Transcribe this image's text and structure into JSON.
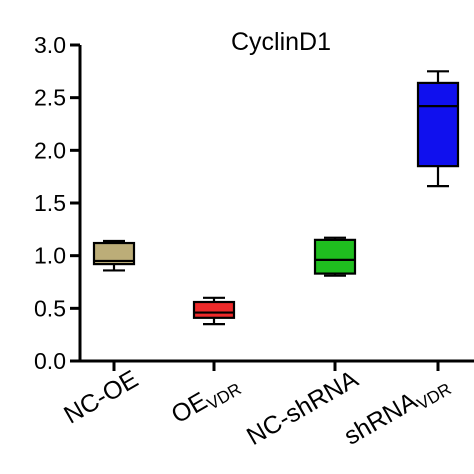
{
  "chart_data": {
    "type": "box",
    "title": "CyclinD1",
    "ylim": [
      0,
      3.0
    ],
    "yticks": [
      "0.0",
      "0.5",
      "1.0",
      "1.5",
      "2.0",
      "2.5",
      "3.0"
    ],
    "categories": [
      {
        "main": "NC-OE",
        "sub": ""
      },
      {
        "main": "OE",
        "sub": "VDR"
      },
      {
        "main": "NC-shRNA",
        "sub": ""
      },
      {
        "main": "shRNA",
        "sub": "VDR"
      }
    ],
    "series": [
      {
        "min": 0.86,
        "q1": 0.92,
        "median": 0.95,
        "q3": 1.12,
        "max": 1.14,
        "color": "#bcad78"
      },
      {
        "min": 0.35,
        "q1": 0.41,
        "median": 0.46,
        "q3": 0.56,
        "max": 0.6,
        "color": "#ee2a2a"
      },
      {
        "min": 0.81,
        "q1": 0.83,
        "median": 0.96,
        "q3": 1.15,
        "max": 1.17,
        "color": "#1fbe1f"
      },
      {
        "min": 1.66,
        "q1": 1.85,
        "median": 2.42,
        "q3": 2.64,
        "max": 2.75,
        "color": "#1010ee"
      }
    ],
    "grid": false
  }
}
